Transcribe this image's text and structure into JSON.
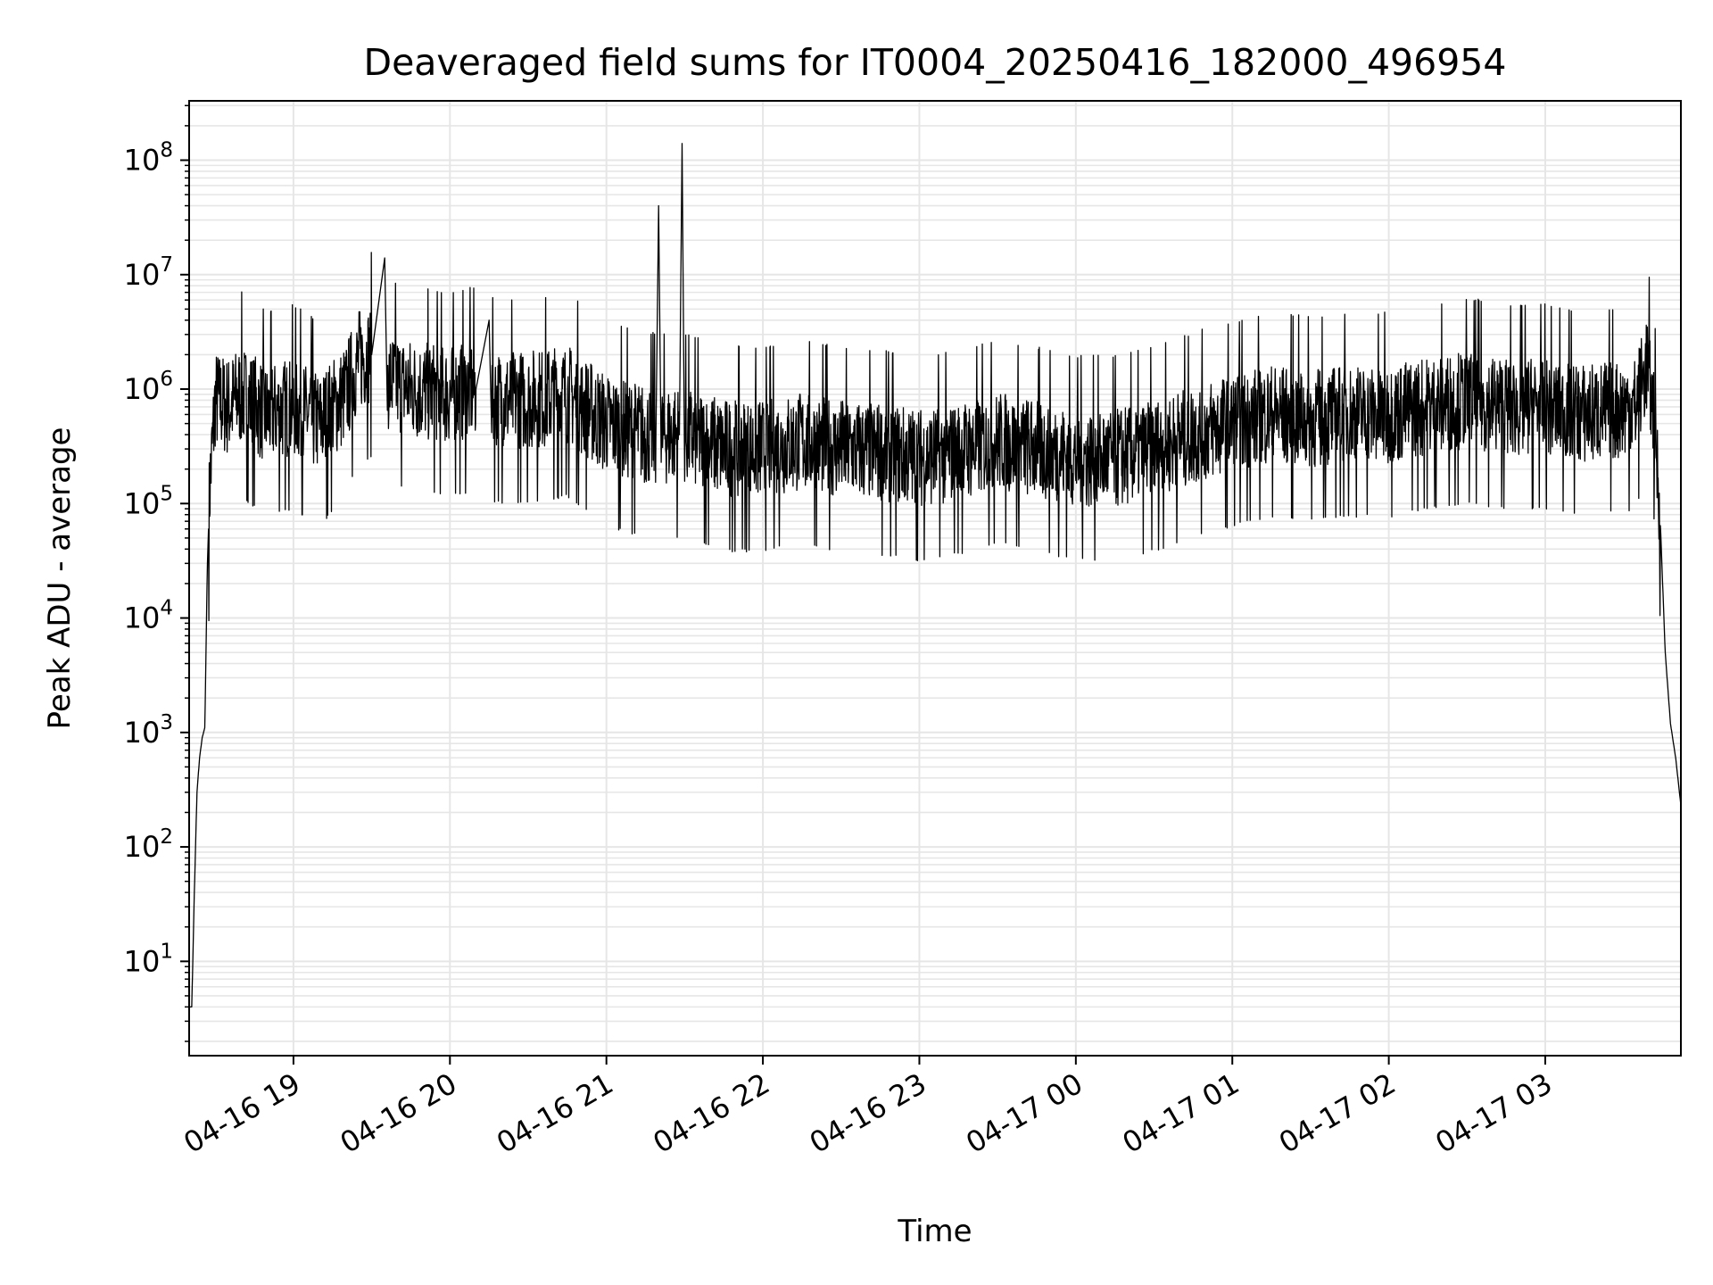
{
  "chart_data": {
    "type": "line",
    "title": "Deaveraged field sums for IT0004_20250416_182000_496954",
    "xlabel": "Time",
    "ylabel": "Peak ADU - average",
    "yscale": "log",
    "ylim": [
      1.5,
      330000000
    ],
    "xlim": [
      "04-16 18:20",
      "04-17 03:52"
    ],
    "grid": true,
    "line_color": "#000000",
    "grid_color": "#e6e6e6",
    "x_ticks": [
      {
        "t": "04-16 19:00",
        "label": "04-16 19"
      },
      {
        "t": "04-16 20:00",
        "label": "04-16 20"
      },
      {
        "t": "04-16 21:00",
        "label": "04-16 21"
      },
      {
        "t": "04-16 22:00",
        "label": "04-16 22"
      },
      {
        "t": "04-16 23:00",
        "label": "04-16 23"
      },
      {
        "t": "04-17 00:00",
        "label": "04-17 00"
      },
      {
        "t": "04-17 01:00",
        "label": "04-17 01"
      },
      {
        "t": "04-17 02:00",
        "label": "04-17 02"
      },
      {
        "t": "04-17 03:00",
        "label": "04-17 03"
      }
    ],
    "y_ticks": [
      {
        "value": 10,
        "base": "10",
        "exp": "1"
      },
      {
        "value": 100,
        "base": "10",
        "exp": "2"
      },
      {
        "value": 1000,
        "base": "10",
        "exp": "3"
      },
      {
        "value": 10000,
        "base": "10",
        "exp": "4"
      },
      {
        "value": 100000,
        "base": "10",
        "exp": "5"
      },
      {
        "value": 1000000,
        "base": "10",
        "exp": "6"
      },
      {
        "value": 10000000,
        "base": "10",
        "exp": "7"
      },
      {
        "value": 100000000,
        "base": "10",
        "exp": "8"
      }
    ],
    "series": [
      {
        "points": [
          [
            "04-16 18:20",
            4
          ],
          [
            "04-16 18:21",
            4
          ],
          [
            "04-16 18:22",
            40
          ],
          [
            "04-16 18:23",
            300
          ],
          [
            "04-16 18:24",
            600
          ],
          [
            "04-16 18:25",
            900
          ],
          [
            "04-16 18:26",
            1100
          ],
          [
            "04-16 18:27",
            30000
          ],
          [
            "04-16 18:28",
            150000
          ],
          [
            "04-16 18:30",
            800000
          ],
          [
            "04-16 18:35",
            700000
          ],
          [
            "04-16 18:40",
            900000
          ],
          [
            "04-16 18:50",
            600000
          ],
          [
            "04-16 19:00",
            700000
          ],
          [
            "04-16 19:10",
            500000
          ],
          [
            "04-16 19:20",
            900000
          ],
          [
            "04-16 19:25",
            1800000
          ],
          [
            "04-16 19:30",
            2000000
          ],
          [
            "04-16 19:35",
            14000000
          ],
          [
            "04-16 19:36",
            1200000
          ],
          [
            "04-16 19:45",
            1000000
          ],
          [
            "04-16 20:00",
            900000
          ],
          [
            "04-16 20:10",
            1000000
          ],
          [
            "04-16 20:15",
            4000000
          ],
          [
            "04-16 20:16",
            800000
          ],
          [
            "04-16 20:30",
            800000
          ],
          [
            "04-16 20:45",
            900000
          ],
          [
            "04-16 21:00",
            500000
          ],
          [
            "04-16 21:15",
            400000
          ],
          [
            "04-16 21:19",
            400000
          ],
          [
            "04-16 21:20",
            40000000
          ],
          [
            "04-16 21:21",
            400000
          ],
          [
            "04-16 21:28",
            400000
          ],
          [
            "04-16 21:29",
            140000000
          ],
          [
            "04-16 21:30",
            400000
          ],
          [
            "04-16 21:45",
            300000
          ],
          [
            "04-16 22:00",
            300000
          ],
          [
            "04-16 22:15",
            350000
          ],
          [
            "04-16 22:30",
            300000
          ],
          [
            "04-16 22:45",
            280000
          ],
          [
            "04-16 23:00",
            250000
          ],
          [
            "04-16 23:15",
            280000
          ],
          [
            "04-16 23:30",
            350000
          ],
          [
            "04-16 23:45",
            300000
          ],
          [
            "04-17 00:00",
            250000
          ],
          [
            "04-17 00:15",
            250000
          ],
          [
            "04-17 00:30",
            300000
          ],
          [
            "04-17 00:45",
            400000
          ],
          [
            "04-17 01:00",
            500000
          ],
          [
            "04-17 01:15",
            600000
          ],
          [
            "04-17 01:30",
            550000
          ],
          [
            "04-17 01:45",
            600000
          ],
          [
            "04-17 02:00",
            600000
          ],
          [
            "04-17 02:15",
            700000
          ],
          [
            "04-17 02:30",
            800000
          ],
          [
            "04-17 02:45",
            700000
          ],
          [
            "04-17 03:00",
            700000
          ],
          [
            "04-17 03:15",
            600000
          ],
          [
            "04-17 03:35",
            700000
          ],
          [
            "04-17 03:39",
            1700000
          ],
          [
            "04-17 03:42",
            500000
          ],
          [
            "04-17 03:44",
            80000
          ],
          [
            "04-17 03:46",
            5000
          ],
          [
            "04-17 03:48",
            1200
          ],
          [
            "04-17 03:50",
            600
          ],
          [
            "04-17 03:52",
            230
          ]
        ]
      }
    ]
  }
}
